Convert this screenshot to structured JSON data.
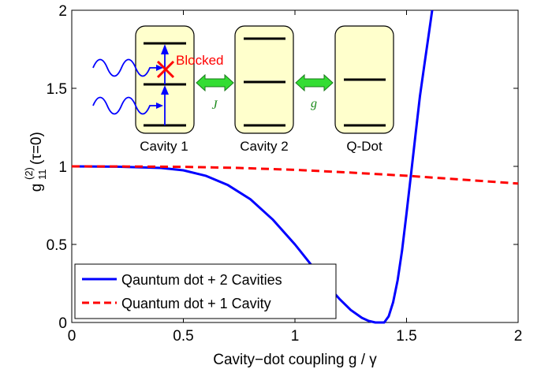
{
  "chart_data": {
    "type": "line",
    "xlabel": "Cavity−dot coupling g / γ",
    "ylabel_main": "g",
    "ylabel_sup": "(2)",
    "ylabel_sub": "11",
    "ylabel_tail": "(τ=0)",
    "xlim": [
      0,
      2
    ],
    "ylim": [
      0,
      2
    ],
    "xticks": [
      0,
      0.5,
      1,
      1.5,
      2
    ],
    "xtick_labels": [
      "0",
      "0.5",
      "1",
      "1.5",
      "2"
    ],
    "yticks": [
      0,
      0.5,
      1,
      1.5,
      2
    ],
    "ytick_labels": [
      "0",
      "0.5",
      "1",
      "1.5",
      "2"
    ],
    "grid": false,
    "legend_position": "bottom-left",
    "series": [
      {
        "name": "Qauntum dot + 2 Cavities",
        "color": "#0000ff",
        "style": "solid",
        "x": [
          0,
          0.2,
          0.4,
          0.5,
          0.6,
          0.7,
          0.8,
          0.9,
          1.0,
          1.05,
          1.1,
          1.15,
          1.2,
          1.25,
          1.3,
          1.33,
          1.36,
          1.38,
          1.4,
          1.42,
          1.44,
          1.46,
          1.48,
          1.5,
          1.52,
          1.54,
          1.56,
          1.58,
          1.6,
          1.61,
          1.615
        ],
        "y": [
          1.0,
          0.998,
          0.99,
          0.975,
          0.94,
          0.88,
          0.79,
          0.66,
          0.5,
          0.41,
          0.32,
          0.23,
          0.15,
          0.08,
          0.03,
          0.01,
          0.0,
          0.0,
          0.0,
          0.04,
          0.13,
          0.27,
          0.46,
          0.7,
          0.95,
          1.2,
          1.45,
          1.65,
          1.85,
          1.95,
          2.0
        ]
      },
      {
        "name": "Quantum dot + 1 Cavity",
        "color": "#ff0000",
        "style": "dashed",
        "x": [
          0,
          0.25,
          0.5,
          0.75,
          1.0,
          1.25,
          1.5,
          1.75,
          2.0
        ],
        "y": [
          1.0,
          0.999,
          0.997,
          0.99,
          0.978,
          0.96,
          0.94,
          0.915,
          0.89
        ]
      }
    ],
    "inset": {
      "boxes": [
        "Cavity 1",
        "Cavity 2",
        "Q-Dot"
      ],
      "couplings": [
        "J",
        "g"
      ],
      "blocked_text": "Blocked",
      "box_fill": "#ffffcc",
      "arrow_color": "#33dd33",
      "photon_color": "#0000ff"
    }
  }
}
